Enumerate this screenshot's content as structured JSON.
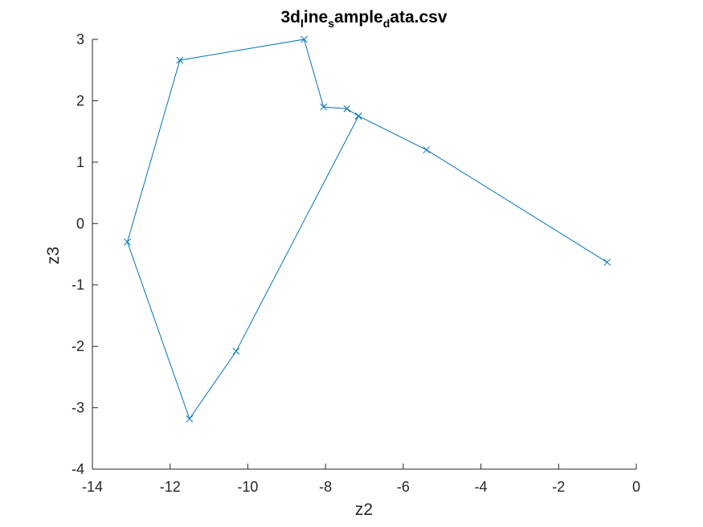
{
  "chart_data": {
    "type": "line",
    "title_parts": [
      {
        "text": "3d",
        "sub": false
      },
      {
        "text": "l",
        "sub": true
      },
      {
        "text": "ine",
        "sub": false
      },
      {
        "text": "s",
        "sub": true
      },
      {
        "text": "ample",
        "sub": false
      },
      {
        "text": "d",
        "sub": true
      },
      {
        "text": "ata.csv",
        "sub": false
      }
    ],
    "xlabel": "z2",
    "ylabel": "z3",
    "xlim": [
      -14,
      0
    ],
    "ylim": [
      -4,
      3
    ],
    "xticks": [
      -14,
      -12,
      -10,
      -8,
      -6,
      -4,
      -2,
      0
    ],
    "yticks": [
      -4,
      -3,
      -2,
      -1,
      0,
      1,
      2,
      3
    ],
    "grid": false,
    "marker": "x",
    "color": "#0072bd",
    "x": [
      -0.75,
      -5.4,
      -7.15,
      -7.45,
      -8.05,
      -8.55,
      -11.75,
      -13.1,
      -11.5,
      -10.3,
      -7.15
    ],
    "y": [
      -0.63,
      1.2,
      1.75,
      1.87,
      1.9,
      3.0,
      2.66,
      -0.3,
      -3.18,
      -2.08,
      1.75
    ]
  }
}
